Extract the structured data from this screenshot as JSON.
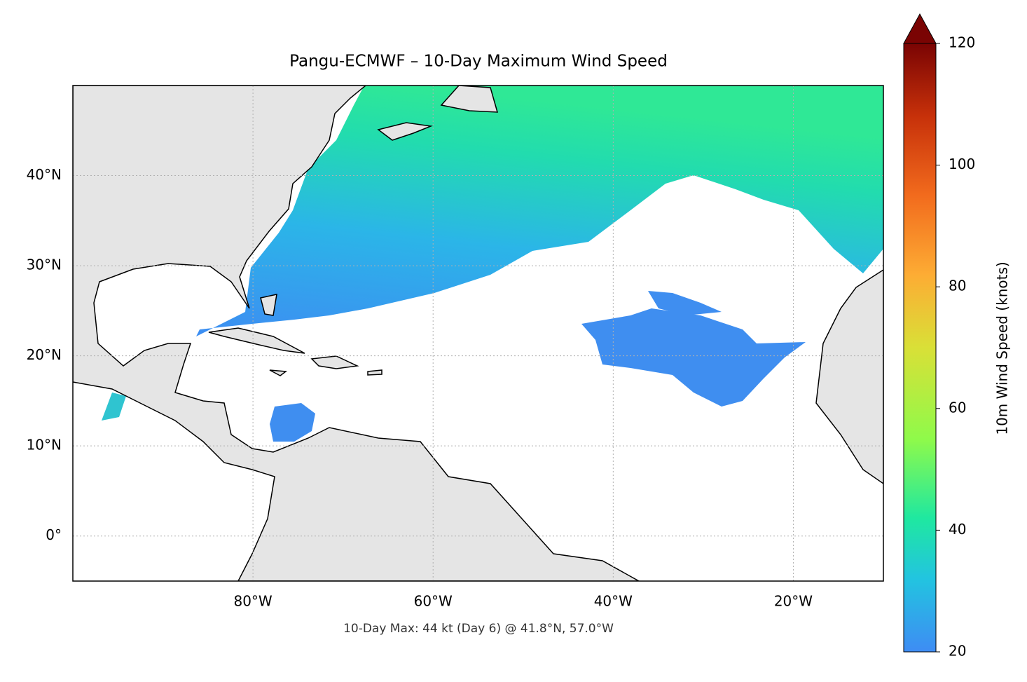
{
  "chart_data": {
    "type": "map",
    "title": "Pangu-ECMWF – 10-Day Maximum Wind Speed",
    "annotation": "10-Day Max: 44 kt (Day 6) @ 41.8°N, 57.0°W",
    "xlim": [
      -100,
      -10
    ],
    "ylim": [
      -5,
      50
    ],
    "xticks": [
      {
        "value": -80,
        "label": "80°W"
      },
      {
        "value": -60,
        "label": "60°W"
      },
      {
        "value": -40,
        "label": "40°W"
      },
      {
        "value": -20,
        "label": "20°W"
      }
    ],
    "yticks": [
      {
        "value": 0,
        "label": "0°"
      },
      {
        "value": 10,
        "label": "10°N"
      },
      {
        "value": 20,
        "label": "20°N"
      },
      {
        "value": 30,
        "label": "30°N"
      },
      {
        "value": 40,
        "label": "40°N"
      }
    ],
    "grid": true,
    "colorbar": {
      "label": "10m Wind Speed (knots)",
      "lim": [
        20,
        120
      ],
      "ticks": [
        20,
        40,
        60,
        80,
        100,
        120
      ]
    }
  }
}
